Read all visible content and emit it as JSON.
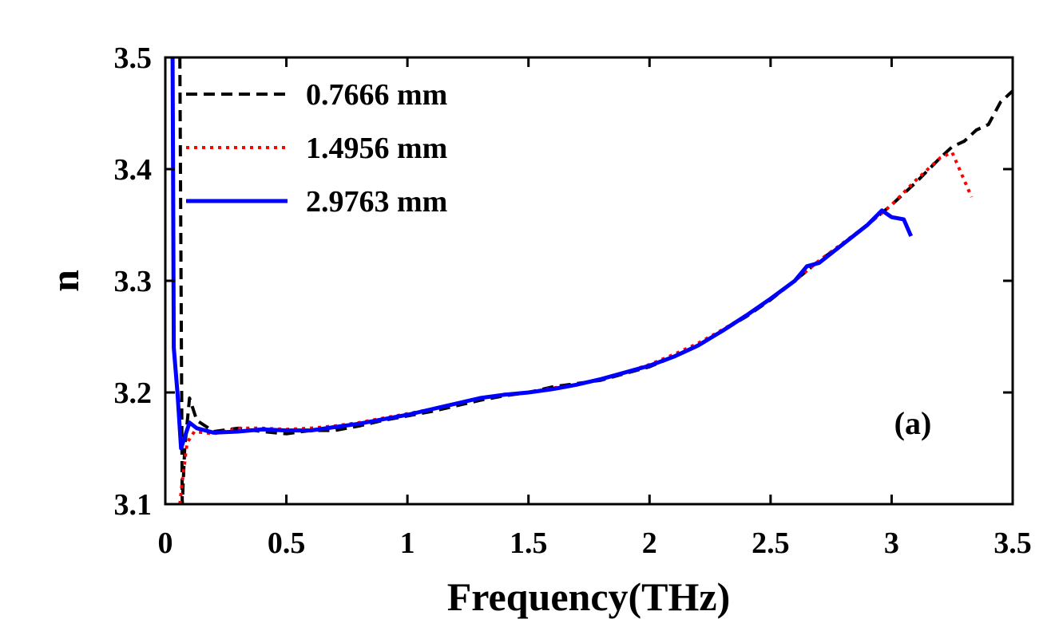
{
  "chart_data": {
    "type": "line",
    "xlabel": "Frequency(THz)",
    "ylabel": "n",
    "xlim": [
      0,
      3.5
    ],
    "ylim": [
      3.1,
      3.5
    ],
    "xticks": [
      0,
      0.5,
      1,
      1.5,
      2,
      2.5,
      3,
      3.5
    ],
    "xtick_labels": [
      "0",
      "0.5",
      "1",
      "1.5",
      "2",
      "2.5",
      "3",
      "3.5"
    ],
    "yticks": [
      3.1,
      3.2,
      3.3,
      3.4,
      3.5
    ],
    "ytick_labels": [
      "3.1",
      "3.2",
      "3.3",
      "3.4",
      "3.5"
    ],
    "grid": false,
    "legend_position": "top-left",
    "annotation": "(a)",
    "series": [
      {
        "name": "0.7666 mm",
        "color": "#000000",
        "style": "dashed",
        "points": [
          [
            0.06,
            3.5
          ],
          [
            0.065,
            3.3
          ],
          [
            0.07,
            3.1
          ],
          [
            0.08,
            3.15
          ],
          [
            0.1,
            3.195
          ],
          [
            0.13,
            3.175
          ],
          [
            0.2,
            3.165
          ],
          [
            0.3,
            3.168
          ],
          [
            0.4,
            3.165
          ],
          [
            0.5,
            3.163
          ],
          [
            0.6,
            3.166
          ],
          [
            0.7,
            3.166
          ],
          [
            0.8,
            3.17
          ],
          [
            0.9,
            3.175
          ],
          [
            1.0,
            3.179
          ],
          [
            1.1,
            3.183
          ],
          [
            1.2,
            3.188
          ],
          [
            1.3,
            3.193
          ],
          [
            1.4,
            3.197
          ],
          [
            1.5,
            3.2
          ],
          [
            1.6,
            3.205
          ],
          [
            1.7,
            3.208
          ],
          [
            1.8,
            3.211
          ],
          [
            1.9,
            3.217
          ],
          [
            2.0,
            3.223
          ],
          [
            2.1,
            3.232
          ],
          [
            2.2,
            3.242
          ],
          [
            2.3,
            3.255
          ],
          [
            2.4,
            3.268
          ],
          [
            2.5,
            3.283
          ],
          [
            2.6,
            3.3
          ],
          [
            2.7,
            3.318
          ],
          [
            2.8,
            3.333
          ],
          [
            2.9,
            3.35
          ],
          [
            3.0,
            3.368
          ],
          [
            3.1,
            3.388
          ],
          [
            3.2,
            3.41
          ],
          [
            3.25,
            3.42
          ],
          [
            3.3,
            3.425
          ],
          [
            3.35,
            3.435
          ],
          [
            3.4,
            3.44
          ],
          [
            3.45,
            3.46
          ],
          [
            3.5,
            3.47
          ]
        ]
      },
      {
        "name": "1.4956 mm",
        "color": "#ff0000",
        "style": "dotted",
        "points": [
          [
            0.06,
            3.1
          ],
          [
            0.07,
            3.12
          ],
          [
            0.09,
            3.155
          ],
          [
            0.12,
            3.165
          ],
          [
            0.2,
            3.163
          ],
          [
            0.3,
            3.168
          ],
          [
            0.4,
            3.168
          ],
          [
            0.5,
            3.167
          ],
          [
            0.6,
            3.168
          ],
          [
            0.7,
            3.17
          ],
          [
            0.8,
            3.173
          ],
          [
            0.9,
            3.177
          ],
          [
            1.0,
            3.181
          ],
          [
            1.1,
            3.185
          ],
          [
            1.2,
            3.19
          ],
          [
            1.3,
            3.195
          ],
          [
            1.4,
            3.198
          ],
          [
            1.5,
            3.2
          ],
          [
            1.6,
            3.204
          ],
          [
            1.7,
            3.207
          ],
          [
            1.8,
            3.212
          ],
          [
            1.9,
            3.218
          ],
          [
            2.0,
            3.225
          ],
          [
            2.1,
            3.234
          ],
          [
            2.2,
            3.244
          ],
          [
            2.3,
            3.256
          ],
          [
            2.4,
            3.269
          ],
          [
            2.5,
            3.284
          ],
          [
            2.6,
            3.3
          ],
          [
            2.7,
            3.318
          ],
          [
            2.8,
            3.334
          ],
          [
            2.9,
            3.35
          ],
          [
            3.0,
            3.368
          ],
          [
            3.1,
            3.39
          ],
          [
            3.2,
            3.41
          ],
          [
            3.25,
            3.415
          ],
          [
            3.3,
            3.39
          ],
          [
            3.33,
            3.375
          ]
        ]
      },
      {
        "name": "2.9763 mm",
        "color": "#0000ff",
        "style": "solid",
        "points": [
          [
            0.03,
            3.5
          ],
          [
            0.032,
            3.4
          ],
          [
            0.035,
            3.24
          ],
          [
            0.05,
            3.2
          ],
          [
            0.065,
            3.15
          ],
          [
            0.08,
            3.16
          ],
          [
            0.1,
            3.173
          ],
          [
            0.13,
            3.168
          ],
          [
            0.2,
            3.164
          ],
          [
            0.3,
            3.165
          ],
          [
            0.4,
            3.167
          ],
          [
            0.5,
            3.166
          ],
          [
            0.6,
            3.166
          ],
          [
            0.7,
            3.169
          ],
          [
            0.8,
            3.172
          ],
          [
            0.9,
            3.176
          ],
          [
            1.0,
            3.18
          ],
          [
            1.1,
            3.185
          ],
          [
            1.2,
            3.19
          ],
          [
            1.3,
            3.195
          ],
          [
            1.4,
            3.198
          ],
          [
            1.5,
            3.2
          ],
          [
            1.6,
            3.203
          ],
          [
            1.65,
            3.205
          ],
          [
            1.7,
            3.207
          ],
          [
            1.8,
            3.212
          ],
          [
            1.9,
            3.218
          ],
          [
            2.0,
            3.224
          ],
          [
            2.1,
            3.232
          ],
          [
            2.2,
            3.242
          ],
          [
            2.3,
            3.255
          ],
          [
            2.4,
            3.269
          ],
          [
            2.5,
            3.284
          ],
          [
            2.6,
            3.3
          ],
          [
            2.65,
            3.313
          ],
          [
            2.7,
            3.316
          ],
          [
            2.8,
            3.333
          ],
          [
            2.9,
            3.35
          ],
          [
            2.96,
            3.363
          ],
          [
            3.0,
            3.357
          ],
          [
            3.05,
            3.355
          ],
          [
            3.08,
            3.34
          ]
        ]
      }
    ]
  }
}
